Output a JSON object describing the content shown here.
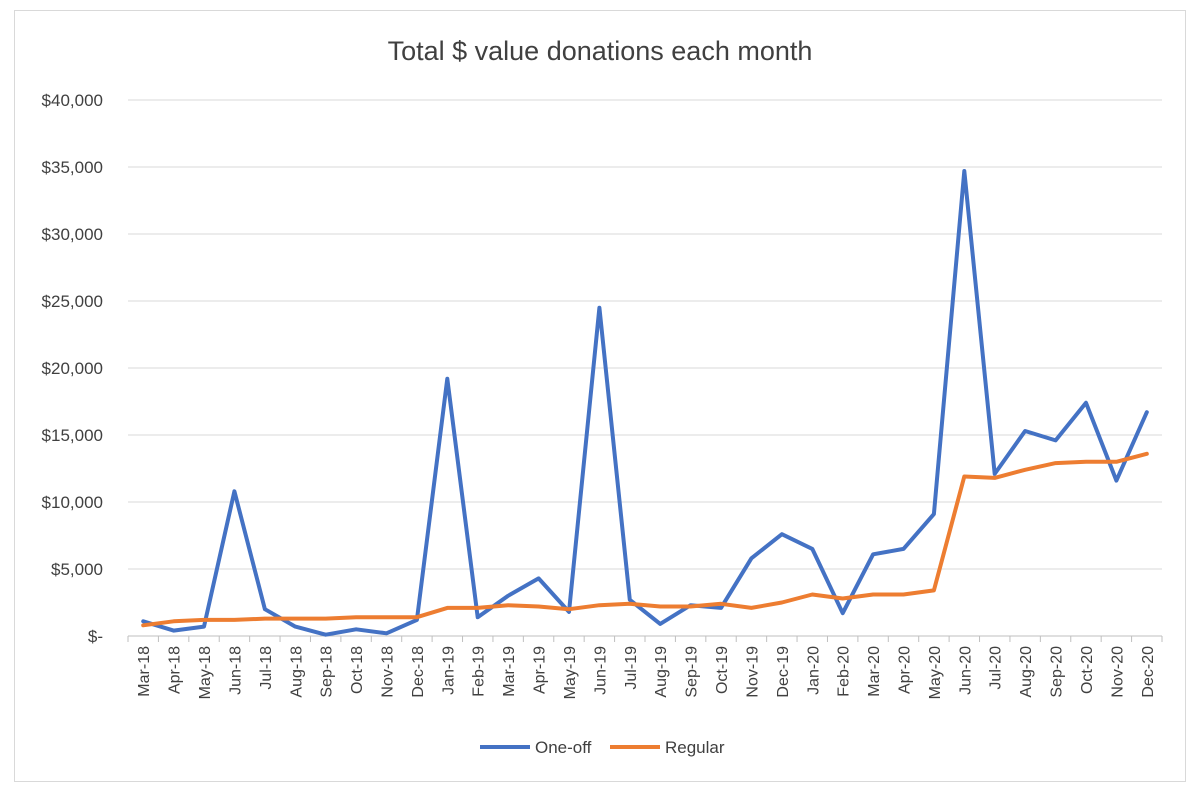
{
  "chart_data": {
    "type": "line",
    "title": "Total $ value donations each month",
    "xlabel": "",
    "ylabel": "",
    "ylim": [
      0,
      40000
    ],
    "yticks": [
      0,
      5000,
      10000,
      15000,
      20000,
      25000,
      30000,
      35000,
      40000
    ],
    "ytick_labels": [
      "$-",
      "$5,000",
      "$10,000",
      "$15,000",
      "$20,000",
      "$25,000",
      "$30,000",
      "$35,000",
      "$40,000"
    ],
    "grid": true,
    "legend_position": "bottom",
    "categories": [
      "Mar-18",
      "Apr-18",
      "May-18",
      "Jun-18",
      "Jul-18",
      "Aug-18",
      "Sep-18",
      "Oct-18",
      "Nov-18",
      "Dec-18",
      "Jan-19",
      "Feb-19",
      "Mar-19",
      "Apr-19",
      "May-19",
      "Jun-19",
      "Jul-19",
      "Aug-19",
      "Sep-19",
      "Oct-19",
      "Nov-19",
      "Dec-19",
      "Jan-20",
      "Feb-20",
      "Mar-20",
      "Apr-20",
      "May-20",
      "Jun-20",
      "Jul-20",
      "Aug-20",
      "Sep-20",
      "Oct-20",
      "Nov-20",
      "Dec-20"
    ],
    "series": [
      {
        "name": "One-off",
        "color": "#4472c4",
        "values": [
          1100,
          400,
          700,
          10800,
          2000,
          700,
          100,
          500,
          200,
          1200,
          19200,
          1400,
          3000,
          4300,
          1800,
          24500,
          2700,
          900,
          2300,
          2100,
          5800,
          7600,
          6500,
          1700,
          6100,
          6500,
          9100,
          34700,
          12100,
          15300,
          14600,
          17400,
          11600,
          16700
        ]
      },
      {
        "name": "Regular",
        "color": "#ed7d31",
        "values": [
          800,
          1100,
          1200,
          1200,
          1300,
          1300,
          1300,
          1400,
          1400,
          1400,
          2100,
          2100,
          2300,
          2200,
          2000,
          2300,
          2400,
          2200,
          2200,
          2400,
          2100,
          2500,
          3100,
          2800,
          3100,
          3100,
          3400,
          11900,
          11800,
          12400,
          12900,
          13000,
          13000,
          13600
        ]
      }
    ]
  }
}
